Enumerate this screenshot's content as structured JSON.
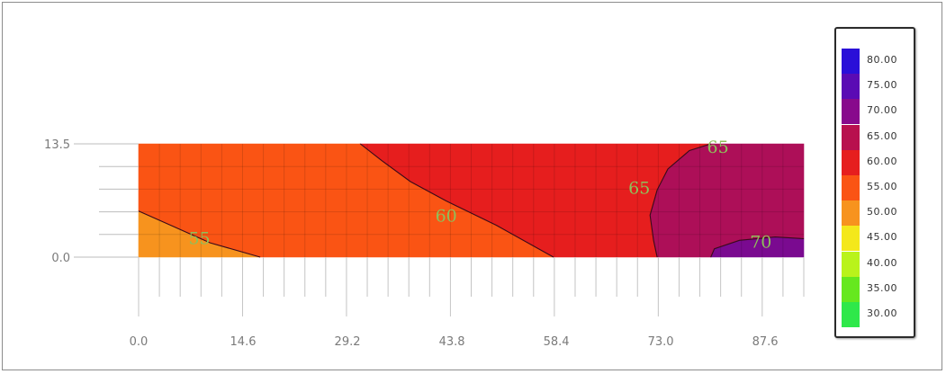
{
  "chart_data": {
    "type": "heatmap",
    "title": "",
    "xlabel": "",
    "ylabel": "",
    "x_ticks": [
      "0.0",
      "14.6",
      "29.2",
      "43.8",
      "58.4",
      "73.0",
      "87.6"
    ],
    "y_ticks": [
      "0.0",
      "13.5"
    ],
    "xlim": [
      0,
      93
    ],
    "ylim": [
      0,
      13.5
    ],
    "grid": true,
    "legend_position": "right",
    "regions": [
      {
        "level": "50-55",
        "color": "#f7931e",
        "polygon": [
          [
            0,
            0
          ],
          [
            0,
            5.5
          ],
          [
            5,
            3.6
          ],
          [
            10,
            1.7
          ],
          [
            17,
            0
          ]
        ]
      },
      {
        "level": "55-60",
        "color": "#fa5414",
        "polygon": [
          [
            0,
            5.5
          ],
          [
            0,
            13.5
          ],
          [
            31,
            13.5
          ],
          [
            34,
            11.5
          ],
          [
            38,
            9
          ],
          [
            43,
            6.7
          ],
          [
            50,
            3.8
          ],
          [
            58,
            0
          ],
          [
            17,
            0
          ],
          [
            10,
            1.7
          ],
          [
            5,
            3.6
          ]
        ]
      },
      {
        "level": "60-65",
        "color": "#e61e1e",
        "polygon": [
          [
            31,
            13.5
          ],
          [
            80,
            13.5
          ],
          [
            77,
            12.7
          ],
          [
            74,
            10.5
          ],
          [
            72.5,
            8
          ],
          [
            71.5,
            5
          ],
          [
            72,
            2
          ],
          [
            72.5,
            0
          ],
          [
            58,
            0
          ],
          [
            50,
            3.8
          ],
          [
            43,
            6.7
          ],
          [
            38,
            9
          ],
          [
            34,
            11.5
          ]
        ]
      },
      {
        "level": "65-70",
        "color": "#ad0f58",
        "polygon": [
          [
            80,
            13.5
          ],
          [
            93,
            13.5
          ],
          [
            93,
            2.2
          ],
          [
            89,
            2.4
          ],
          [
            84,
            2.0
          ],
          [
            80.5,
            1.0
          ],
          [
            80,
            0
          ],
          [
            72.5,
            0
          ],
          [
            72,
            2
          ],
          [
            71.5,
            5
          ],
          [
            72.5,
            8
          ],
          [
            74,
            10.5
          ],
          [
            77,
            12.7
          ]
        ]
      },
      {
        "level": "70-75",
        "color": "#7a0a90",
        "polygon": [
          [
            80,
            0
          ],
          [
            80.5,
            1.0
          ],
          [
            84,
            2.0
          ],
          [
            89,
            2.4
          ],
          [
            93,
            2.2
          ],
          [
            93,
            0
          ]
        ]
      }
    ],
    "contour_lines": [
      {
        "level": 55,
        "points": [
          [
            0,
            5.5
          ],
          [
            5,
            3.6
          ],
          [
            10,
            1.7
          ],
          [
            17,
            0
          ]
        ]
      },
      {
        "level": 60,
        "points": [
          [
            31,
            13.5
          ],
          [
            34,
            11.5
          ],
          [
            38,
            9
          ],
          [
            43,
            6.7
          ],
          [
            50,
            3.8
          ],
          [
            58,
            0
          ]
        ]
      },
      {
        "level": 65,
        "points": [
          [
            80,
            13.5
          ],
          [
            77,
            12.7
          ],
          [
            74,
            10.5
          ],
          [
            72.5,
            8
          ],
          [
            71.5,
            5
          ],
          [
            72,
            2
          ],
          [
            72.5,
            0
          ]
        ]
      },
      {
        "level": 70,
        "points": [
          [
            80,
            0
          ],
          [
            80.5,
            1.0
          ],
          [
            84,
            2.0
          ],
          [
            89,
            2.4
          ],
          [
            93,
            2.2
          ]
        ]
      }
    ],
    "contour_labels": [
      {
        "text": "55",
        "x": 8.5,
        "y": 2.3
      },
      {
        "text": "60",
        "x": 43,
        "y": 5.0
      },
      {
        "text": "65",
        "x": 70,
        "y": 8.3
      },
      {
        "text": "65",
        "x": 81,
        "y": 13.2
      },
      {
        "text": "70",
        "x": 87,
        "y": 1.9
      }
    ],
    "legend": [
      {
        "label": "80.00",
        "color": "#2a0fd8"
      },
      {
        "label": "75.00",
        "color": "#5a0bb4"
      },
      {
        "label": "70.00",
        "color": "#880a8c"
      },
      {
        "label": "65.00",
        "color": "#b8104e"
      },
      {
        "label": "60.00",
        "color": "#e61e1e"
      },
      {
        "label": "55.00",
        "color": "#fa5414"
      },
      {
        "label": "50.00",
        "color": "#f7931e"
      },
      {
        "label": "45.00",
        "color": "#f4e81b"
      },
      {
        "label": "40.00",
        "color": "#b9f31b"
      },
      {
        "label": "35.00",
        "color": "#66e81e"
      },
      {
        "label": "30.00",
        "color": "#2ee84a"
      }
    ]
  }
}
